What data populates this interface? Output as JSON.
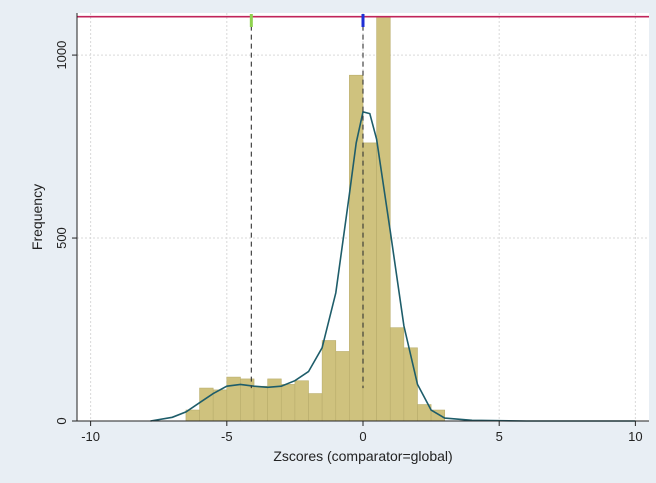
{
  "chart_data": {
    "type": "bar",
    "xlabel": "Zscores (comparator=global)",
    "ylabel": "Frequency",
    "xlim": [
      -10.5,
      10.5
    ],
    "ylim": [
      0,
      1115
    ],
    "x_ticks": [
      -10,
      -5,
      0,
      5,
      10
    ],
    "y_ticks": [
      0,
      500,
      1000
    ],
    "x_tick_labels": [
      "-10",
      "-5",
      "0",
      "5",
      "10"
    ],
    "y_tick_labels": [
      "0",
      "500",
      "1000"
    ],
    "grid": true,
    "bin_width": 0.5,
    "bins": [
      {
        "start": -6.5,
        "value": 30
      },
      {
        "start": -6.0,
        "value": 90
      },
      {
        "start": -5.5,
        "value": 85
      },
      {
        "start": -5.0,
        "value": 120
      },
      {
        "start": -4.5,
        "value": 115
      },
      {
        "start": -4.0,
        "value": 95
      },
      {
        "start": -3.5,
        "value": 115
      },
      {
        "start": -3.0,
        "value": 100
      },
      {
        "start": -2.5,
        "value": 110
      },
      {
        "start": -2.0,
        "value": 75
      },
      {
        "start": -1.5,
        "value": 220
      },
      {
        "start": -1.0,
        "value": 190
      },
      {
        "start": -0.5,
        "value": 945
      },
      {
        "start": 0.0,
        "value": 760
      },
      {
        "start": 0.5,
        "value": 1105
      },
      {
        "start": 1.0,
        "value": 255
      },
      {
        "start": 1.5,
        "value": 200
      },
      {
        "start": 2.0,
        "value": 45
      },
      {
        "start": 2.5,
        "value": 30
      }
    ],
    "density_curve": {
      "x": [
        -7.8,
        -7,
        -6.5,
        -6,
        -5.5,
        -5,
        -4.5,
        -4,
        -3.5,
        -3,
        -2.5,
        -2,
        -1.5,
        -1,
        -0.5,
        -0.25,
        0,
        0.25,
        0.5,
        1,
        1.5,
        2,
        2.5,
        3,
        4,
        6,
        10
      ],
      "y": [
        0,
        10,
        25,
        50,
        75,
        95,
        100,
        95,
        92,
        95,
        110,
        135,
        200,
        350,
        620,
        760,
        845,
        840,
        770,
        520,
        260,
        100,
        30,
        8,
        2,
        0,
        0
      ]
    },
    "reference_lines": {
      "horizontal": {
        "y": 1105,
        "color": "#c0245a"
      },
      "vertical": [
        {
          "x": -4.1,
          "marker_color": "#8fd14f"
        },
        {
          "x": 0.0,
          "marker_color": "#1f2fd6"
        }
      ]
    },
    "colors": {
      "bar_fill": "#cfc27e",
      "bar_edge": "#b9ad6c",
      "curve": "#1e5d6a",
      "plot_region": "#ffffff",
      "outer_background": "#e8eef4",
      "grid": "#d9d9d9"
    }
  }
}
